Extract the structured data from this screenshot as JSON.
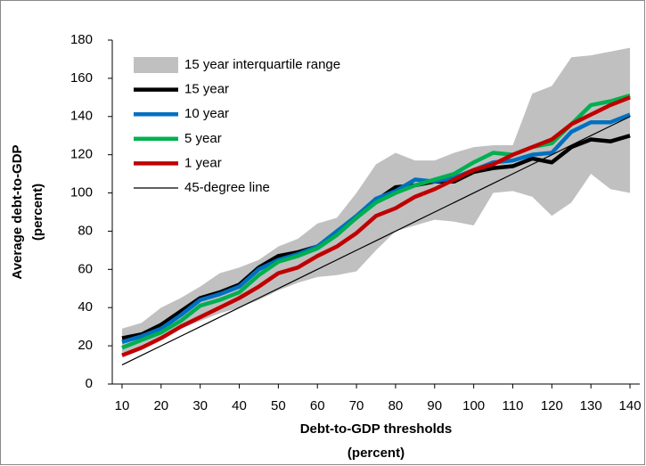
{
  "chart_data": {
    "type": "line",
    "ylabel": [
      "Average debt-to-GDP",
      "(percent)"
    ],
    "xlabel": [
      "Debt-to-GDP thresholds",
      "(percent)"
    ],
    "x": [
      10,
      15,
      20,
      25,
      30,
      35,
      40,
      45,
      50,
      55,
      60,
      65,
      70,
      75,
      80,
      85,
      90,
      95,
      100,
      105,
      110,
      115,
      120,
      125,
      130,
      135,
      140
    ],
    "xlim": [
      7.5,
      142.5
    ],
    "xticks": [
      10,
      20,
      30,
      40,
      50,
      60,
      70,
      80,
      90,
      100,
      110,
      120,
      130,
      140
    ],
    "ylim": [
      0,
      180
    ],
    "yticks": [
      0,
      20,
      40,
      60,
      80,
      100,
      120,
      140,
      160,
      180
    ],
    "grid": false,
    "legend": "upper left",
    "band": {
      "name": "15 year interquartile range",
      "color": "#c0c0c0",
      "lower": [
        16,
        19,
        24,
        29,
        33,
        37,
        40,
        44,
        49,
        53,
        56,
        57,
        59,
        70,
        80,
        83,
        86,
        85,
        83,
        100,
        101,
        98,
        88,
        95,
        110,
        102,
        100
      ],
      "upper": [
        29,
        32,
        40,
        45,
        51,
        58,
        61,
        65,
        72,
        76,
        84,
        87,
        100,
        115,
        121,
        117,
        117,
        121,
        124,
        125,
        125,
        152,
        156,
        171,
        172,
        174,
        176
      ]
    },
    "series": [
      {
        "name": "15 year",
        "color": "#000000",
        "line_width": 4.5,
        "values": [
          24,
          26,
          31,
          38,
          45,
          48,
          52,
          61,
          67,
          69,
          72,
          79,
          87,
          96,
          103,
          104,
          106,
          106,
          111,
          113,
          114,
          118,
          116,
          124,
          128,
          127,
          130
        ]
      },
      {
        "name": "10 year",
        "color": "#0070c0",
        "line_width": 4.5,
        "values": [
          22,
          25,
          29,
          36,
          44,
          47,
          51,
          60,
          65,
          68,
          72,
          80,
          88,
          97,
          101,
          107,
          106,
          108,
          112,
          116,
          117,
          120,
          121,
          132,
          137,
          137,
          141
        ]
      },
      {
        "name": "5 year",
        "color": "#00b050",
        "line_width": 4.5,
        "values": [
          19,
          23,
          27,
          33,
          41,
          44,
          48,
          57,
          64,
          67,
          71,
          78,
          87,
          95,
          100,
          104,
          107,
          110,
          116,
          121,
          120,
          124,
          126,
          136,
          146,
          148,
          151
        ]
      },
      {
        "name": "1 year",
        "color": "#c00000",
        "line_width": 4.5,
        "values": [
          15,
          19,
          24,
          30,
          35,
          40,
          45,
          51,
          58,
          61,
          67,
          72,
          79,
          88,
          92,
          98,
          102,
          107,
          112,
          115,
          120,
          124,
          128,
          136,
          141,
          146,
          150
        ]
      },
      {
        "name": "45-degree line",
        "color": "#000000",
        "line_width": 1.2,
        "values": [
          10,
          15,
          20,
          25,
          30,
          35,
          40,
          45,
          50,
          55,
          60,
          65,
          70,
          75,
          80,
          85,
          90,
          95,
          100,
          105,
          110,
          115,
          120,
          125,
          130,
          135,
          140
        ]
      }
    ]
  }
}
